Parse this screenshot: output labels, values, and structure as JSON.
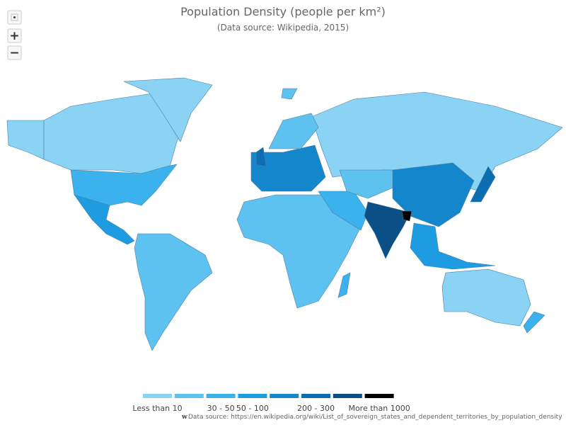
{
  "title": "Population Density (people per km²)",
  "subtitle": "(Data source: Wikipedia, 2015)",
  "zoom_in": "+",
  "zoom_out": "−",
  "legend": {
    "labels": [
      "Less than 10",
      null,
      "30 - 50",
      "50 - 100",
      null,
      "200 - 300",
      null,
      "More than 1000"
    ],
    "colors": [
      "#8ad3f5",
      "#5ec2f1",
      "#3bb2ee",
      "#1e9ce2",
      "#1486cb",
      "#0d6db2",
      "#0a4f86",
      "#000000"
    ]
  },
  "credits": {
    "icon": "w",
    "text": "Data source: https://en.wikipedia.org/wiki/List_of_sovereign_states_and_dependent_territories_by_population_density"
  }
}
